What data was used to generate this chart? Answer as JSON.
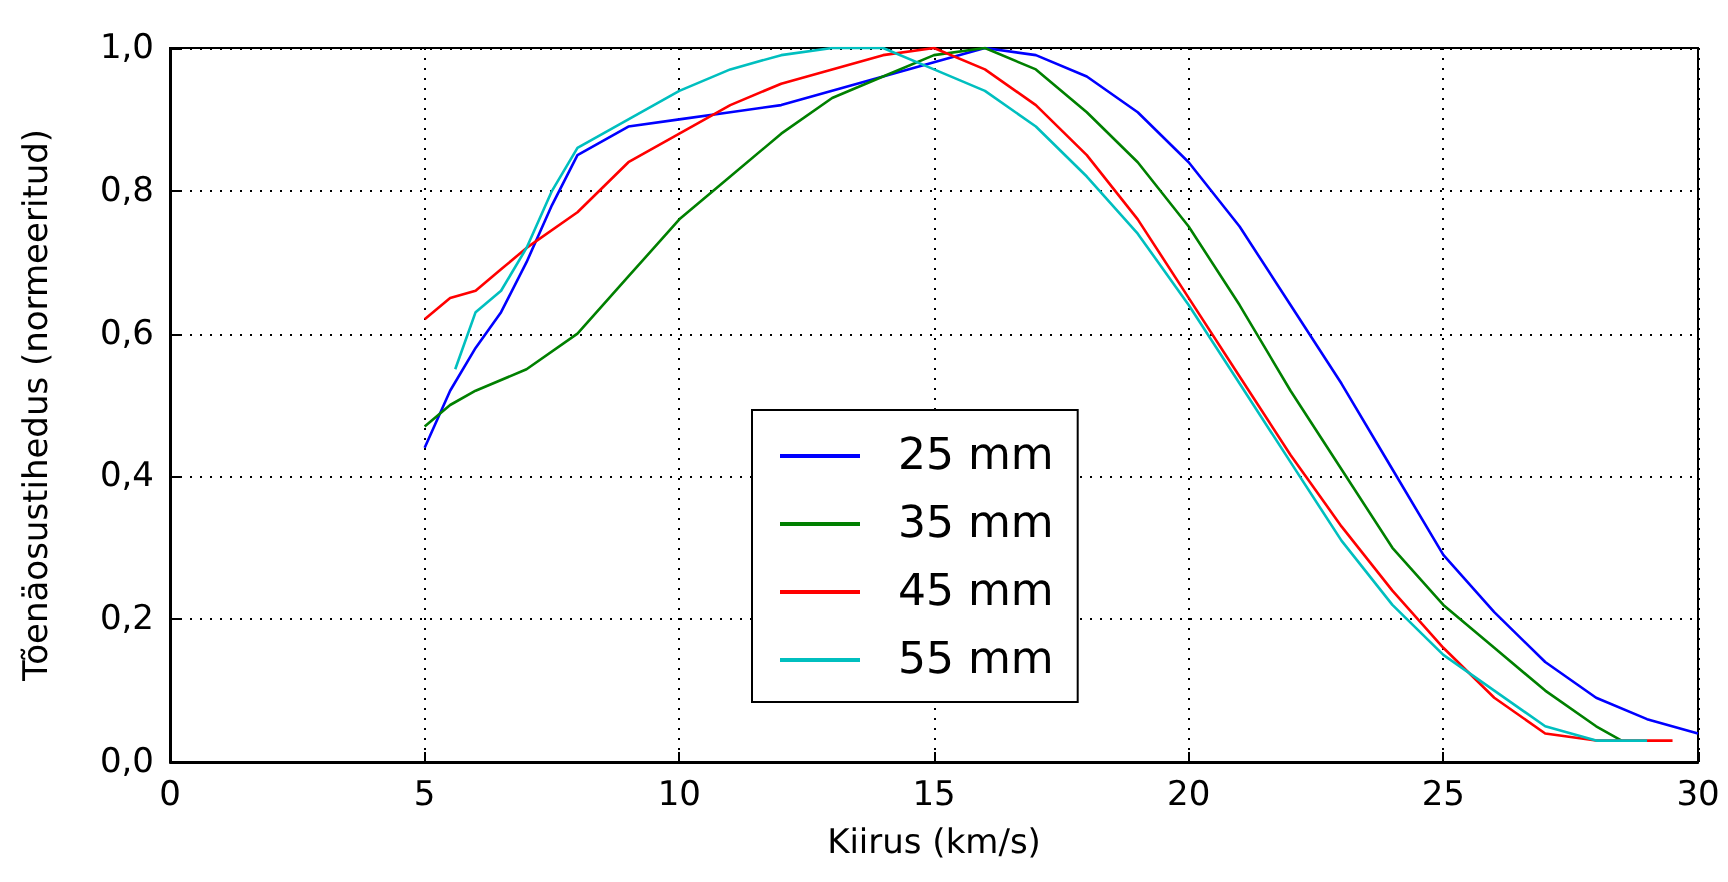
{
  "chart_data": {
    "type": "line",
    "xlabel": "Kiirus (km/s)",
    "ylabel": "Tõenäosustihedus (normeeritud)",
    "xlim": [
      0,
      30
    ],
    "xticks": [
      0,
      5,
      10,
      15,
      20,
      25,
      30
    ],
    "ylim": [
      0,
      1
    ],
    "yticks": [
      {
        "value": 0,
        "label": "0,0"
      },
      {
        "value": 0.2,
        "label": "0,2"
      },
      {
        "value": 0.4,
        "label": "0,4"
      },
      {
        "value": 0.6,
        "label": "0,6"
      },
      {
        "value": 0.8,
        "label": "0,8"
      },
      {
        "value": 1,
        "label": "1,0"
      }
    ],
    "grid": true,
    "legend": "bottom center",
    "marker": "none",
    "line_style": "solid",
    "series": [
      {
        "name": "25 mm",
        "color": "#0000ff",
        "x": [
          5,
          5.5,
          6,
          6.5,
          7,
          7.5,
          8,
          8.5,
          9,
          10,
          11,
          12,
          13,
          14,
          15,
          16,
          17,
          18,
          19,
          20,
          21,
          22,
          23,
          24,
          25,
          26,
          27,
          28,
          29,
          30
        ],
        "values": [
          0.44,
          0.52,
          0.58,
          0.63,
          0.7,
          0.78,
          0.85,
          0.87,
          0.89,
          0.9,
          0.91,
          0.92,
          0.94,
          0.96,
          0.98,
          1.0,
          0.99,
          0.96,
          0.91,
          0.84,
          0.75,
          0.64,
          0.53,
          0.41,
          0.29,
          0.21,
          0.14,
          0.09,
          0.06,
          0.04
        ]
      },
      {
        "name": "35 mm",
        "color": "#008000",
        "x": [
          5,
          5.5,
          6,
          7,
          8,
          9,
          10,
          11,
          12,
          13,
          14,
          15,
          16,
          17,
          18,
          19,
          20,
          21,
          22,
          23,
          24,
          25,
          26,
          27,
          28,
          28.5
        ],
        "values": [
          0.47,
          0.5,
          0.52,
          0.55,
          0.6,
          0.68,
          0.76,
          0.82,
          0.88,
          0.93,
          0.96,
          0.99,
          1.0,
          0.97,
          0.91,
          0.84,
          0.75,
          0.64,
          0.52,
          0.41,
          0.3,
          0.22,
          0.16,
          0.1,
          0.05,
          0.03
        ]
      },
      {
        "name": "45 mm",
        "color": "#ff0000",
        "x": [
          5,
          5.5,
          6,
          6.5,
          7,
          8,
          9,
          10,
          11,
          12,
          13,
          14,
          15,
          16,
          17,
          18,
          19,
          20,
          21,
          22,
          23,
          24,
          25,
          26,
          27,
          28,
          29.5
        ],
        "values": [
          0.62,
          0.65,
          0.66,
          0.69,
          0.72,
          0.77,
          0.84,
          0.88,
          0.92,
          0.95,
          0.97,
          0.99,
          1.0,
          0.97,
          0.92,
          0.85,
          0.76,
          0.65,
          0.54,
          0.43,
          0.33,
          0.24,
          0.16,
          0.09,
          0.04,
          0.03,
          0.03
        ]
      },
      {
        "name": "55 mm",
        "color": "#00bfbf",
        "x": [
          5.6,
          6,
          6.5,
          7,
          7.5,
          8,
          9,
          10,
          11,
          12,
          13,
          14,
          15,
          16,
          17,
          18,
          19,
          20,
          21,
          22,
          23,
          24,
          25,
          26,
          27,
          28,
          29
        ],
        "values": [
          0.55,
          0.63,
          0.66,
          0.72,
          0.8,
          0.86,
          0.9,
          0.94,
          0.97,
          0.99,
          1.0,
          1.0,
          0.97,
          0.94,
          0.89,
          0.82,
          0.74,
          0.64,
          0.53,
          0.42,
          0.31,
          0.22,
          0.15,
          0.1,
          0.05,
          0.03,
          0.03
        ]
      }
    ]
  }
}
